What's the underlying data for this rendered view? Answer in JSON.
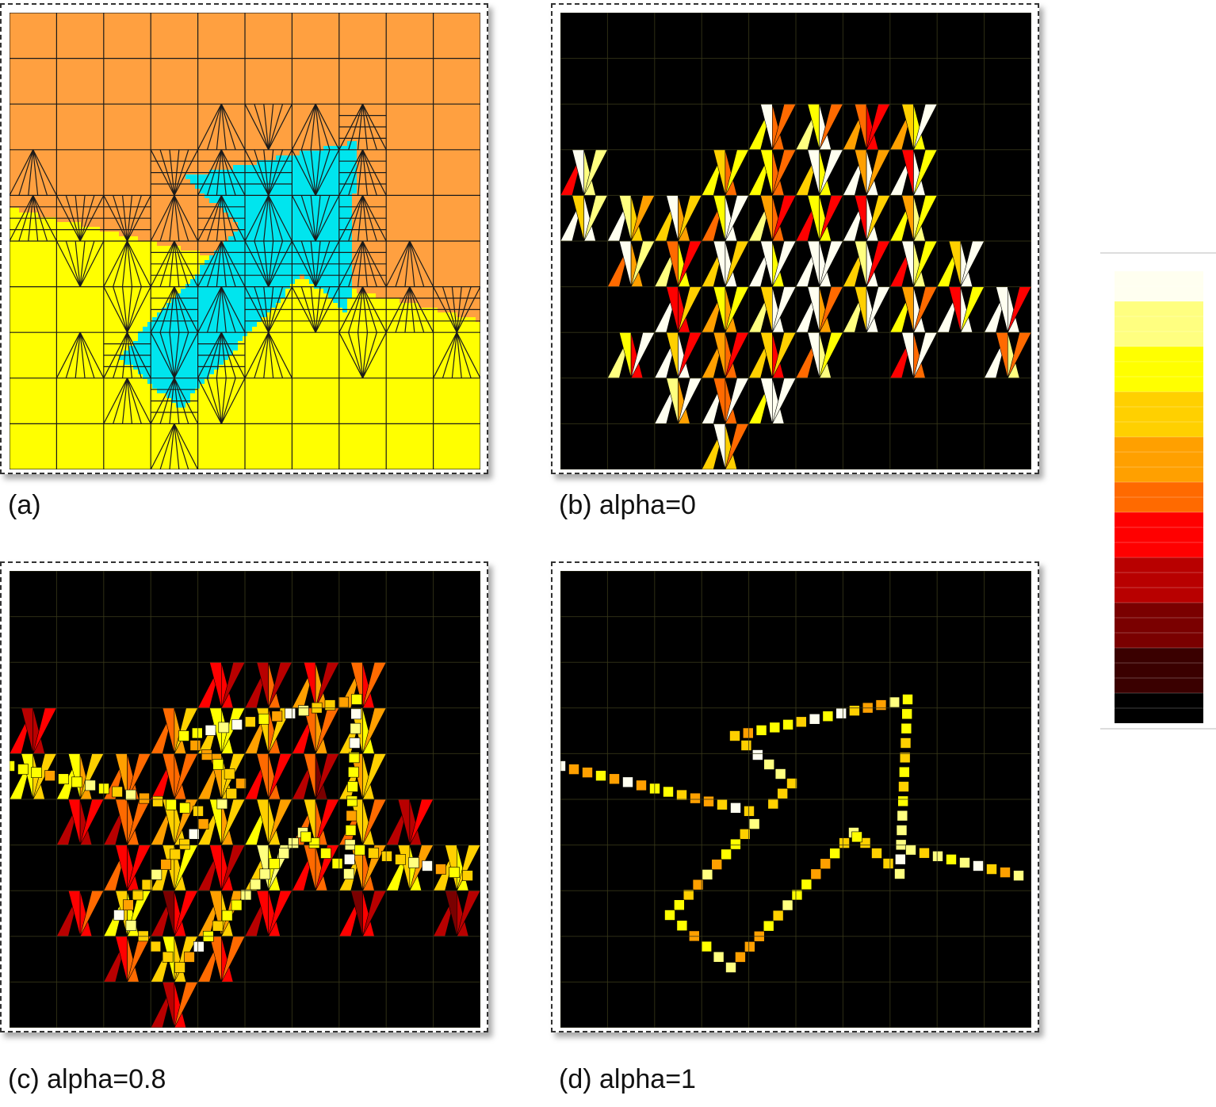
{
  "figure": {
    "panels": [
      {
        "id": "a",
        "caption": "(a)",
        "mode": "regions"
      },
      {
        "id": "b",
        "caption": "(b) alpha=0",
        "mode": "heat",
        "alpha": 0
      },
      {
        "id": "c",
        "caption": "(c) alpha=0.8",
        "mode": "heat",
        "alpha": 0.8
      },
      {
        "id": "d",
        "caption": "(d) alpha=1",
        "mode": "heat",
        "alpha": 1
      }
    ],
    "region_colors": {
      "top": "#FFA040",
      "bottom": "#FFFF00",
      "arrow": "#00E5EE",
      "mesh": "#1a1a1a"
    },
    "heat_colors": {
      "background": "#000000",
      "ramp": [
        "#000000",
        "#3a0000",
        "#7a0000",
        "#b80000",
        "#ff0000",
        "#ff6a00",
        "#ffa000",
        "#ffd000",
        "#ffff00",
        "#ffff80",
        "#fffff0"
      ]
    },
    "colorbar": {
      "orientation": "vertical",
      "low_color": "#000000",
      "high_color": "#fffff0"
    }
  }
}
